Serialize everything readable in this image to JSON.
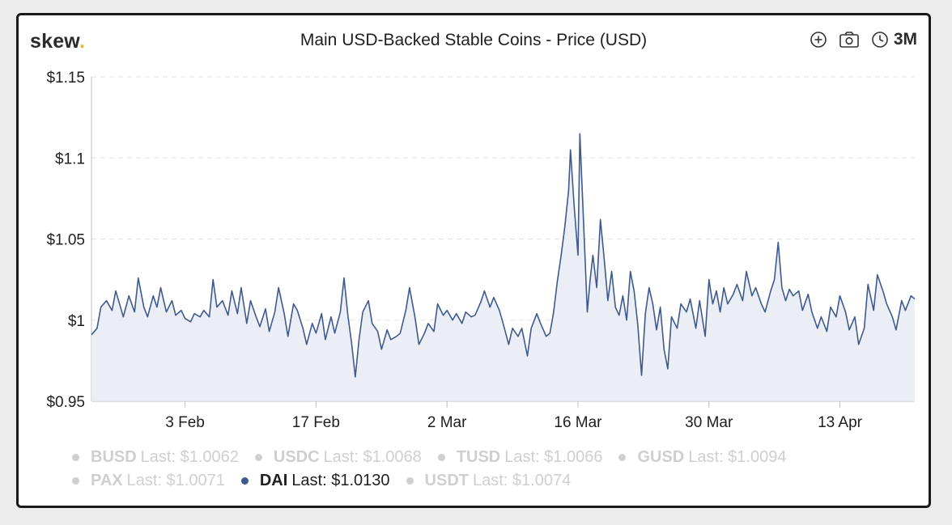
{
  "header": {
    "logo_text": "skew",
    "logo_dot": ".",
    "title": "Main USD-Backed Stable Coins - Price (USD)",
    "range_label": "3M"
  },
  "colors": {
    "line": "#3e5a8e",
    "fill": "#e9ecf4",
    "logo_dot": "#e3b33b",
    "inactive": "#cfcfcf"
  },
  "chart_data": {
    "type": "area",
    "title": "Main USD-Backed Stable Coins - Price (USD)",
    "xlabel": "",
    "ylabel": "",
    "ylim": [
      0.95,
      1.15
    ],
    "y_ticks": [
      0.95,
      1,
      1.05,
      1.1,
      1.15
    ],
    "y_tick_labels": [
      "$0.95",
      "$1",
      "$1.05",
      "$1.1",
      "$1.15"
    ],
    "x_range_days": [
      0,
      88
    ],
    "x_ticks": [
      {
        "day": 10,
        "label": "3 Feb"
      },
      {
        "day": 24,
        "label": "17 Feb"
      },
      {
        "day": 38,
        "label": "2 Mar"
      },
      {
        "day": 52,
        "label": "16 Mar"
      },
      {
        "day": 66,
        "label": "30 Mar"
      },
      {
        "day": 80,
        "label": "13 Apr"
      }
    ],
    "grid": true,
    "series": [
      {
        "name": "DAI",
        "visible": true,
        "points": [
          [
            0,
            0.991
          ],
          [
            0.6,
            0.995
          ],
          [
            1,
            1.008
          ],
          [
            1.6,
            1.012
          ],
          [
            2.2,
            1.006
          ],
          [
            2.6,
            1.018
          ],
          [
            3,
            1.01
          ],
          [
            3.4,
            1.002
          ],
          [
            4,
            1.015
          ],
          [
            4.6,
            1.005
          ],
          [
            5,
            1.026
          ],
          [
            5.6,
            1.008
          ],
          [
            6,
            1.002
          ],
          [
            6.6,
            1.015
          ],
          [
            7,
            1.008
          ],
          [
            7.4,
            1.02
          ],
          [
            8,
            1.005
          ],
          [
            8.6,
            1.012
          ],
          [
            9,
            1.003
          ],
          [
            9.6,
            1.006
          ],
          [
            10,
            1.001
          ],
          [
            10.6,
            0.999
          ],
          [
            11,
            1.004
          ],
          [
            11.6,
            1.002
          ],
          [
            12,
            1.006
          ],
          [
            12.6,
            1.002
          ],
          [
            13,
            1.025
          ],
          [
            13.4,
            1.008
          ],
          [
            14,
            1.012
          ],
          [
            14.6,
            1.003
          ],
          [
            15,
            1.018
          ],
          [
            15.6,
            1.004
          ],
          [
            16,
            1.02
          ],
          [
            16.6,
            0.998
          ],
          [
            17,
            1.012
          ],
          [
            17.6,
            1.002
          ],
          [
            18,
            0.996
          ],
          [
            18.6,
            1.007
          ],
          [
            19,
            0.993
          ],
          [
            19.6,
            1.005
          ],
          [
            20,
            1.02
          ],
          [
            20.6,
            1.004
          ],
          [
            21,
            0.99
          ],
          [
            21.6,
            1.01
          ],
          [
            22,
            1.006
          ],
          [
            22.6,
            0.995
          ],
          [
            23,
            0.985
          ],
          [
            23.6,
            0.998
          ],
          [
            24,
            0.992
          ],
          [
            24.6,
            1.004
          ],
          [
            25,
            0.988
          ],
          [
            25.6,
            1.002
          ],
          [
            26,
            0.992
          ],
          [
            26.6,
            1.005
          ],
          [
            27,
            1.026
          ],
          [
            27.4,
            1.003
          ],
          [
            27.8,
            0.986
          ],
          [
            28.2,
            0.965
          ],
          [
            28.6,
            0.988
          ],
          [
            29,
            1.005
          ],
          [
            29.6,
            1.012
          ],
          [
            30,
            0.998
          ],
          [
            30.6,
            0.993
          ],
          [
            31,
            0.982
          ],
          [
            31.6,
            0.994
          ],
          [
            32,
            0.988
          ],
          [
            32.6,
            0.99
          ],
          [
            33,
            0.992
          ],
          [
            33.6,
            1.006
          ],
          [
            34,
            1.02
          ],
          [
            34.6,
            1.001
          ],
          [
            35,
            0.985
          ],
          [
            35.6,
            0.992
          ],
          [
            36,
            0.998
          ],
          [
            36.6,
            0.993
          ],
          [
            37,
            1.01
          ],
          [
            37.6,
            1.003
          ],
          [
            38,
            1.006
          ],
          [
            38.6,
            1.0
          ],
          [
            39,
            1.004
          ],
          [
            39.6,
            0.998
          ],
          [
            40,
            1.005
          ],
          [
            40.6,
            1.002
          ],
          [
            41,
            1.003
          ],
          [
            41.6,
            1.011
          ],
          [
            42,
            1.018
          ],
          [
            42.6,
            1.008
          ],
          [
            43,
            1.014
          ],
          [
            43.6,
            1.006
          ],
          [
            44,
            0.998
          ],
          [
            44.6,
            0.985
          ],
          [
            45,
            0.995
          ],
          [
            45.6,
            0.99
          ],
          [
            46,
            0.995
          ],
          [
            46.6,
            0.978
          ],
          [
            47,
            0.995
          ],
          [
            47.6,
            1.004
          ],
          [
            48,
            0.998
          ],
          [
            48.6,
            0.99
          ],
          [
            49,
            0.992
          ],
          [
            49.4,
            1.005
          ],
          [
            49.8,
            1.024
          ],
          [
            50.2,
            1.04
          ],
          [
            50.6,
            1.058
          ],
          [
            51,
            1.08
          ],
          [
            51.2,
            1.105
          ],
          [
            51.6,
            1.07
          ],
          [
            52,
            1.04
          ],
          [
            52.2,
            1.115
          ],
          [
            52.6,
            1.06
          ],
          [
            53,
            1.005
          ],
          [
            53.3,
            1.025
          ],
          [
            53.6,
            1.04
          ],
          [
            54,
            1.02
          ],
          [
            54.4,
            1.062
          ],
          [
            54.8,
            1.038
          ],
          [
            55.2,
            1.012
          ],
          [
            55.6,
            1.03
          ],
          [
            56,
            1.008
          ],
          [
            56.4,
            1.003
          ],
          [
            56.8,
            1.015
          ],
          [
            57.2,
            1.0
          ],
          [
            57.6,
            1.03
          ],
          [
            58,
            1.018
          ],
          [
            58.4,
            0.997
          ],
          [
            58.8,
            0.966
          ],
          [
            59.2,
            1.004
          ],
          [
            59.6,
            1.02
          ],
          [
            60,
            1.01
          ],
          [
            60.4,
            0.994
          ],
          [
            60.8,
            1.008
          ],
          [
            61.2,
            0.982
          ],
          [
            61.6,
            0.97
          ],
          [
            62,
            1.002
          ],
          [
            62.6,
            0.995
          ],
          [
            63,
            1.01
          ],
          [
            63.6,
            1.005
          ],
          [
            64,
            1.013
          ],
          [
            64.6,
            0.995
          ],
          [
            65,
            1.012
          ],
          [
            65.6,
            0.99
          ],
          [
            66,
            1.025
          ],
          [
            66.4,
            1.01
          ],
          [
            66.8,
            1.018
          ],
          [
            67.2,
            1.005
          ],
          [
            67.6,
            1.02
          ],
          [
            68,
            1.01
          ],
          [
            68.6,
            1.016
          ],
          [
            69,
            1.022
          ],
          [
            69.6,
            1.012
          ],
          [
            70,
            1.03
          ],
          [
            70.6,
            1.015
          ],
          [
            71,
            1.02
          ],
          [
            71.6,
            1.01
          ],
          [
            72,
            1.005
          ],
          [
            72.6,
            1.018
          ],
          [
            73,
            1.025
          ],
          [
            73.4,
            1.048
          ],
          [
            73.8,
            1.02
          ],
          [
            74.2,
            1.012
          ],
          [
            74.6,
            1.019
          ],
          [
            75,
            1.015
          ],
          [
            75.6,
            1.018
          ],
          [
            76,
            1.006
          ],
          [
            76.6,
            1.016
          ],
          [
            77,
            1.005
          ],
          [
            77.6,
            0.995
          ],
          [
            78,
            1.002
          ],
          [
            78.6,
            0.993
          ],
          [
            79,
            1.008
          ],
          [
            79.6,
            1.002
          ],
          [
            80,
            1.015
          ],
          [
            80.6,
            1.005
          ],
          [
            81,
            0.994
          ],
          [
            81.6,
            1.002
          ],
          [
            82,
            0.985
          ],
          [
            82.6,
            0.995
          ],
          [
            83,
            1.022
          ],
          [
            83.6,
            1.006
          ],
          [
            84,
            1.028
          ],
          [
            84.6,
            1.018
          ],
          [
            85,
            1.01
          ],
          [
            85.6,
            1.002
          ],
          [
            86,
            0.994
          ],
          [
            86.6,
            1.012
          ],
          [
            87,
            1.006
          ],
          [
            87.6,
            1.015
          ],
          [
            88,
            1.013
          ]
        ]
      }
    ]
  },
  "legend": {
    "rows": [
      [
        {
          "name": "BUSD",
          "text": "Last: $1.0062",
          "active": false
        },
        {
          "name": "USDC",
          "text": "Last: $1.0068",
          "active": false
        },
        {
          "name": "TUSD",
          "text": "Last: $1.0066",
          "active": false
        },
        {
          "name": "GUSD",
          "text": "Last: $1.0094",
          "active": false
        }
      ],
      [
        {
          "name": "PAX",
          "text": "Last: $1.0071",
          "active": false
        },
        {
          "name": "DAI",
          "text": "Last: $1.0130",
          "active": true
        },
        {
          "name": "USDT",
          "text": "Last: $1.0074",
          "active": false
        }
      ]
    ]
  }
}
